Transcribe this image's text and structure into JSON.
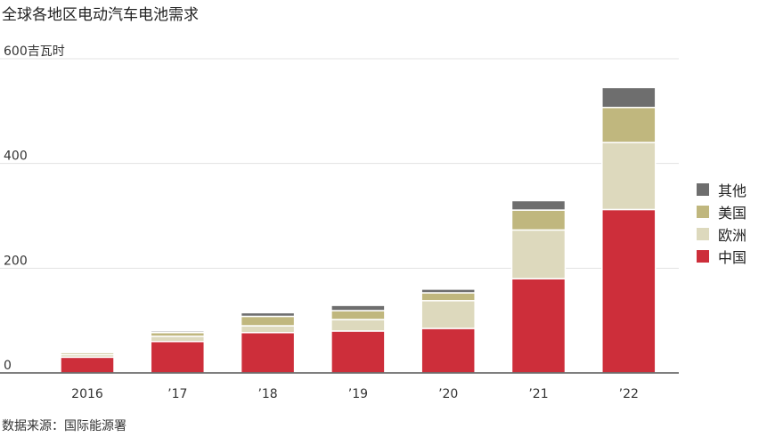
{
  "title": "全球各地区电动汽车电池需求",
  "source": "数据来源：国际能源署",
  "colors": {
    "中国": "#cd2e3a",
    "欧洲": "#ddd9bd",
    "美国": "#c0b77e",
    "其他": "#6e6e6e"
  },
  "chart_data": {
    "type": "bar",
    "stacked": true,
    "title": "全球各地区电动汽车电池需求",
    "ylabel": "吉瓦时",
    "ylim": [
      0,
      600
    ],
    "y_ticks": [
      "0",
      "200",
      "400",
      "600吉瓦时"
    ],
    "grid": true,
    "legend_position": "right",
    "categories": [
      "2016",
      "’17",
      "’18",
      "’19",
      "’20",
      "’21",
      "’22"
    ],
    "series": [
      {
        "name": "中国",
        "values": [
          30,
          60,
          77,
          80,
          85,
          180,
          312
        ]
      },
      {
        "name": "欧洲",
        "values": [
          5,
          10,
          13,
          22,
          53,
          93,
          128
        ]
      },
      {
        "name": "美国",
        "values": [
          4,
          7,
          18,
          17,
          15,
          38,
          67
        ]
      },
      {
        "name": "其他",
        "values": [
          1,
          3,
          7,
          10,
          7,
          18,
          38
        ]
      }
    ]
  }
}
